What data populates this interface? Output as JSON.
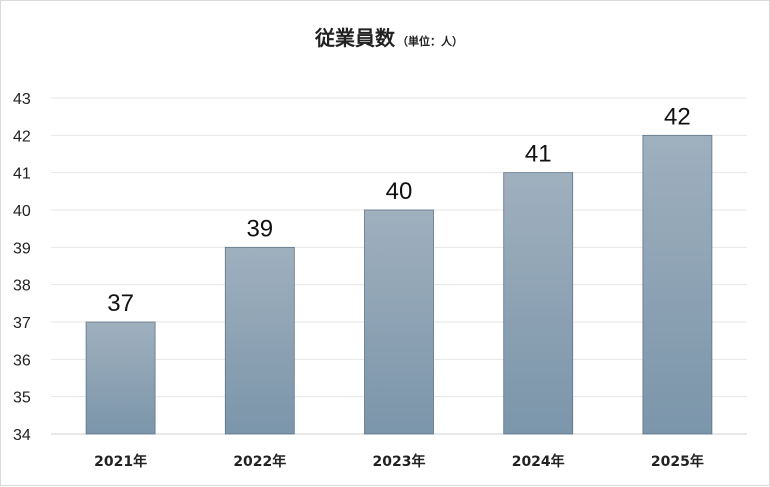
{
  "chart_data": {
    "type": "bar",
    "title": "従業員数",
    "subtitle": "（単位：人）",
    "categories": [
      "2021年",
      "2022年",
      "2023年",
      "2024年",
      "2025年"
    ],
    "values": [
      37,
      39,
      40,
      41,
      42
    ],
    "ylim": [
      34,
      43
    ],
    "yticks": [
      34,
      35,
      36,
      37,
      38,
      39,
      40,
      41,
      42,
      43
    ],
    "grid": true,
    "data_labels": true,
    "bar_color_top": "#9fb0be",
    "bar_color_bottom": "#7b95aa"
  }
}
